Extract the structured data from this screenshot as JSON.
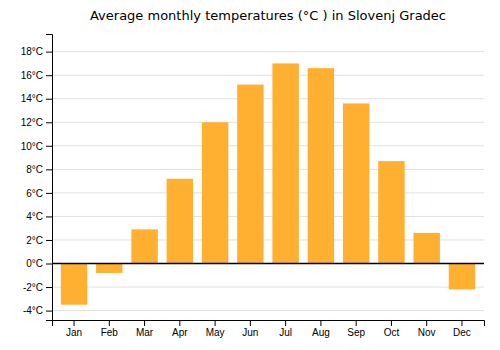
{
  "chart_data": {
    "type": "bar",
    "title": "Average monthly temperatures (°C ) in Slovenj Gradec",
    "categories": [
      "Jan",
      "Feb",
      "Mar",
      "Apr",
      "May",
      "Jun",
      "Jul",
      "Aug",
      "Sep",
      "Oct",
      "Nov",
      "Dec"
    ],
    "values": [
      -3.5,
      -0.8,
      2.9,
      7.2,
      12.0,
      15.2,
      17.0,
      16.6,
      13.6,
      8.7,
      2.6,
      -2.2
    ],
    "color": "#FFB030",
    "ylim": [
      -4.8,
      19.5
    ],
    "yticks": [
      {
        "value": -4,
        "label": "-4°C"
      },
      {
        "value": -2,
        "label": "-2°C"
      },
      {
        "value": 0,
        "label": "0°C"
      },
      {
        "value": 2,
        "label": "2°C"
      },
      {
        "value": 4,
        "label": "4°C"
      },
      {
        "value": 6,
        "label": "6°C"
      },
      {
        "value": 8,
        "label": "8°C"
      },
      {
        "value": 10,
        "label": "10°C"
      },
      {
        "value": 12,
        "label": "12°C"
      },
      {
        "value": 14,
        "label": "14°C"
      },
      {
        "value": 16,
        "label": "16°C"
      },
      {
        "value": 18,
        "label": "18°C"
      }
    ],
    "grid": true
  }
}
